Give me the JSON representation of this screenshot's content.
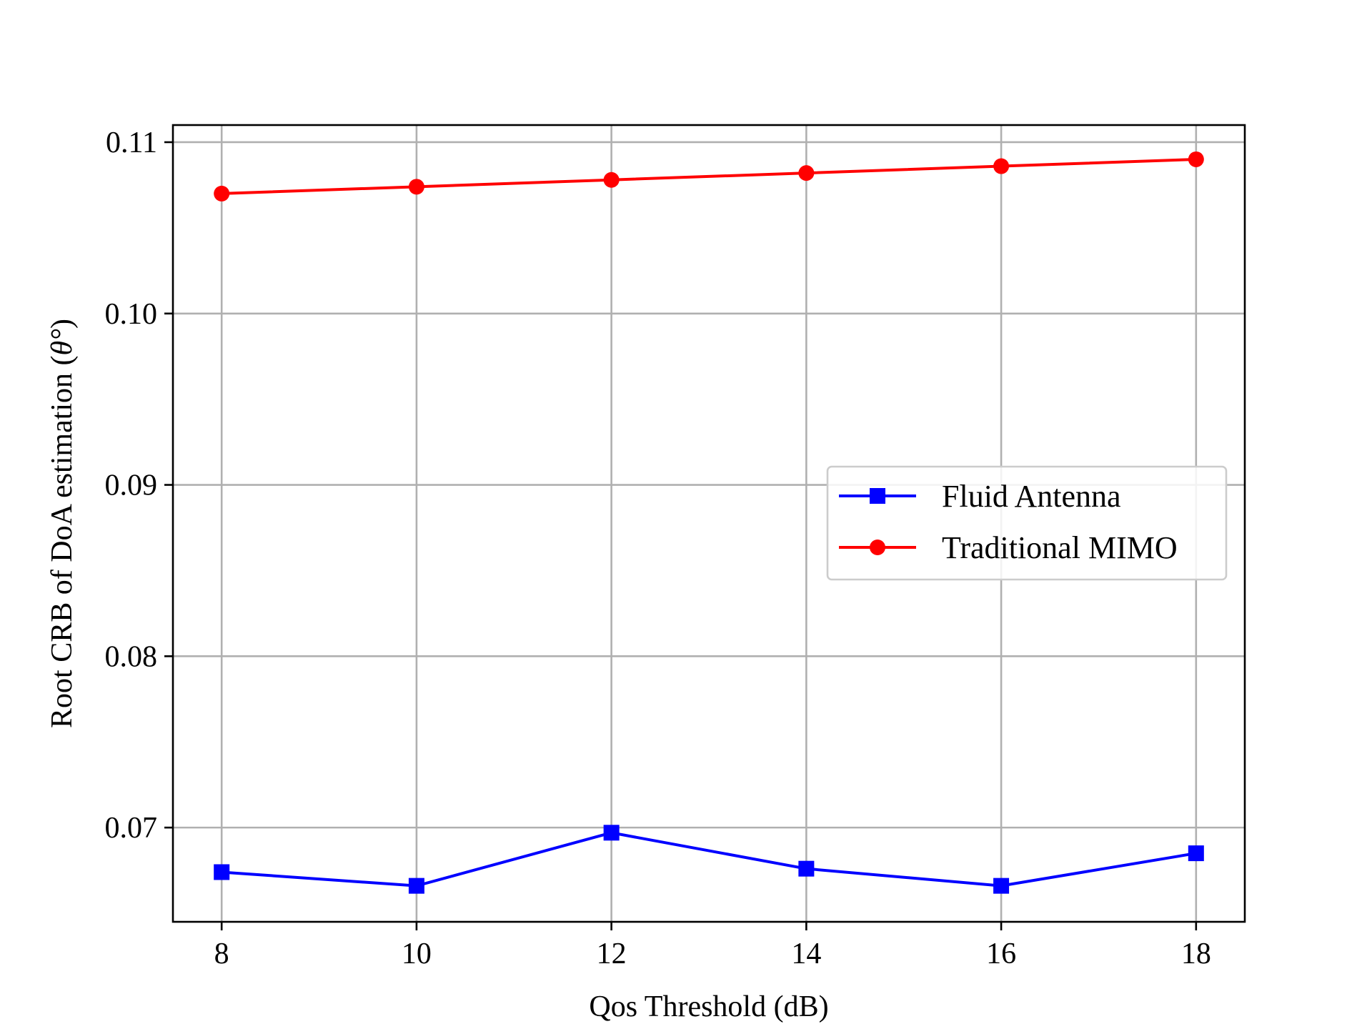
{
  "chart_data": {
    "type": "line",
    "title": "",
    "xlabel": "Qos Threshold (dB)",
    "ylabel_main": "Root CRB of DoA estimation (",
    "ylabel_symbol": "θ°",
    "ylabel_close": ")",
    "x": [
      8,
      10,
      12,
      14,
      16,
      18
    ],
    "xticks": [
      "8",
      "10",
      "12",
      "14",
      "16",
      "18"
    ],
    "yticks": [
      "0.07",
      "0.08",
      "0.09",
      "0.10",
      "0.11"
    ],
    "ytick_values": [
      0.07,
      0.08,
      0.09,
      0.1,
      0.11
    ],
    "xlim": [
      7.5,
      18.5
    ],
    "ylim": [
      0.0645,
      0.111
    ],
    "grid": true,
    "legend_position": "center-right",
    "series": [
      {
        "name": "Fluid Antenna",
        "color": "#0000ff",
        "marker": "square",
        "values": [
          0.0674,
          0.0666,
          0.0697,
          0.0676,
          0.0666,
          0.0685
        ]
      },
      {
        "name": "Traditional MIMO",
        "color": "#ff0000",
        "marker": "circle",
        "values": [
          0.107,
          0.1074,
          0.1078,
          0.1082,
          0.1086,
          0.109
        ]
      }
    ]
  }
}
